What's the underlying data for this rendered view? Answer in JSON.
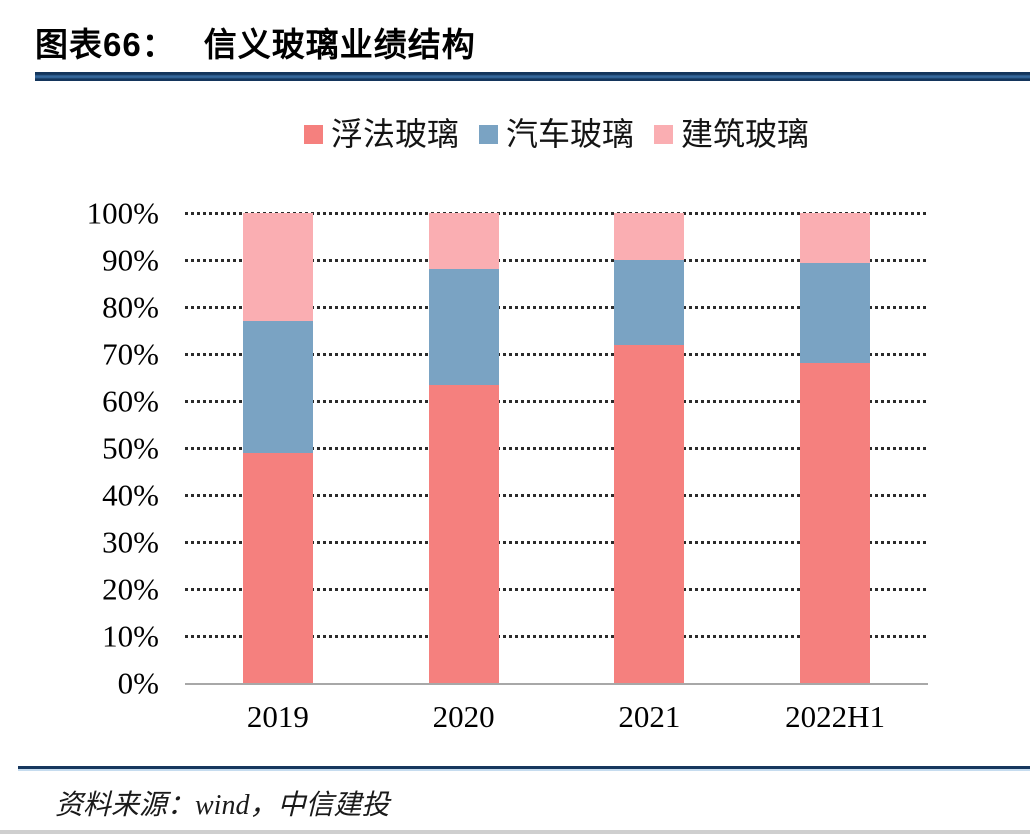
{
  "header": {
    "prefix": "图表66：",
    "title": "信义玻璃业绩结构"
  },
  "chart_data": {
    "type": "bar",
    "stacked": true,
    "percent_stacked": true,
    "title": "信义玻璃业绩结构",
    "categories": [
      "2019",
      "2020",
      "2021",
      "2022H1"
    ],
    "series": [
      {
        "name": "浮法玻璃",
        "color": "#F5807E",
        "values": [
          49,
          63.5,
          72,
          68
        ]
      },
      {
        "name": "汽车玻璃",
        "color": "#7AA3C3",
        "values": [
          28,
          24.5,
          18,
          21.3
        ]
      },
      {
        "name": "建筑玻璃",
        "color": "#FAAEB2",
        "values": [
          23,
          12,
          10,
          10.7
        ]
      }
    ],
    "xlabel": "",
    "ylabel": "",
    "ylim": [
      0,
      100
    ],
    "yticks": [
      "100%",
      "90%",
      "80%",
      "70%",
      "60%",
      "50%",
      "40%",
      "30%",
      "20%",
      "10%",
      "0%"
    ],
    "grid": "horizontal-dotted",
    "legend_position": "top-center"
  },
  "footer": {
    "source": "资料来源：wind，中信建投"
  },
  "colors": {
    "title_rule_dark": "#14355c",
    "title_rule_light": "#35689c",
    "axis_line": "#a8a8a8",
    "gridline": "#2b2b2b",
    "text": "#000000"
  }
}
